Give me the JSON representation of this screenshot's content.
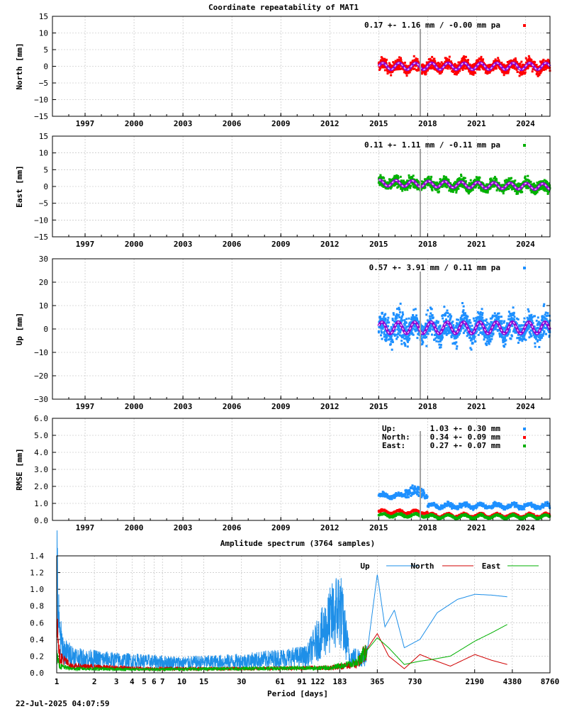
{
  "figure": {
    "title": "Coordinate repeatability of MAT1",
    "timestamp": "22-Jul-2025 04:07:59"
  },
  "colors": {
    "north": "#ff0000",
    "east": "#00b000",
    "up": "#1e90ff",
    "model": "#9400d3",
    "event_line": "#a0a0a0",
    "spec_up": "#1e8fe8",
    "spec_north": "#d00000",
    "spec_east": "#00b000"
  },
  "chart_data": [
    {
      "id": "north",
      "type": "scatter",
      "ylabel": "North [mm]",
      "ylim": [
        -15,
        15
      ],
      "yticks": [
        15,
        10,
        5,
        0,
        -5,
        -10,
        -15
      ],
      "xlim": [
        1995,
        2025.5
      ],
      "xticks": [
        1997,
        2000,
        2003,
        2006,
        2009,
        2012,
        2015,
        2018,
        2021,
        2024
      ],
      "xtick_labels": [
        "1997",
        "2000",
        "2003",
        "2006",
        "2009",
        "2012",
        "2015",
        "2018",
        "2021",
        "2024"
      ],
      "stats": "0.17 +- 1.16 mm / -0.00 mm pa",
      "data_range": [
        2015.0,
        2025.5
      ],
      "mean": 0.0,
      "scatter": 1.16,
      "seasonal_amplitude": 1.0,
      "seasonal_phase": 0.0,
      "event_year": 2017.55,
      "series_color_key": "north"
    },
    {
      "id": "east",
      "type": "scatter",
      "ylabel": "East [mm]",
      "ylim": [
        -15,
        15
      ],
      "yticks": [
        15,
        10,
        5,
        0,
        -5,
        -10,
        -15
      ],
      "xlim": [
        1995,
        2025.5
      ],
      "xticks": [
        1997,
        2000,
        2003,
        2006,
        2009,
        2012,
        2015,
        2018,
        2021,
        2024
      ],
      "xtick_labels": [
        "1997",
        "2000",
        "2003",
        "2006",
        "2009",
        "2012",
        "2015",
        "2018",
        "2021",
        "2024"
      ],
      "stats": "0.11 +- 1.11 mm / -0.11 mm pa",
      "data_range": [
        2015.0,
        2025.5
      ],
      "mean": 0.5,
      "trend_per_year": -0.11,
      "scatter": 1.11,
      "seasonal_amplitude": 0.9,
      "seasonal_phase": 1.2,
      "event_year": 2017.55,
      "series_color_key": "east"
    },
    {
      "id": "up",
      "type": "scatter",
      "ylabel": "Up [mm]",
      "ylim": [
        -30,
        30
      ],
      "yticks": [
        30,
        20,
        10,
        0,
        -10,
        -20,
        -30
      ],
      "xlim": [
        1995,
        2025.5
      ],
      "xticks": [
        1997,
        2000,
        2003,
        2006,
        2009,
        2012,
        2015,
        2018,
        2021,
        2024
      ],
      "xtick_labels": [
        "1997",
        "2000",
        "2003",
        "2006",
        "2009",
        "2012",
        "2015",
        "2018",
        "2021",
        "2024"
      ],
      "stats": "0.57 +- 3.91 mm /  0.11 mm pa",
      "data_range": [
        2015.0,
        2025.5
      ],
      "mean": 0.5,
      "scatter": 3.91,
      "seasonal_amplitude": 2.5,
      "seasonal_phase": 0.3,
      "event_year": 2017.55,
      "series_color_key": "up"
    },
    {
      "id": "rmse",
      "type": "scatter",
      "ylabel": "RMSE [mm]",
      "ylim": [
        0,
        6
      ],
      "yticks": [
        6,
        5,
        4,
        3,
        2,
        1,
        0
      ],
      "ytick_labels": [
        "6.0",
        "5.0",
        "4.0",
        "3.0",
        "2.0",
        "1.0",
        "0.0"
      ],
      "xlim": [
        1995,
        2025.5
      ],
      "xticks": [
        1997,
        2000,
        2003,
        2006,
        2009,
        2012,
        2015,
        2018,
        2021,
        2024
      ],
      "xtick_labels": [
        "1997",
        "2000",
        "2003",
        "2006",
        "2009",
        "2012",
        "2015",
        "2018",
        "2021",
        "2024"
      ],
      "event_year": 2017.55,
      "legend": [
        {
          "name": "Up:",
          "value": "1.03 +- 0.30 mm",
          "color_key": "up",
          "level_early": 1.45,
          "level_late": 0.85
        },
        {
          "name": "North:",
          "value": "0.34 +- 0.09 mm",
          "color_key": "north",
          "level_early": 0.5,
          "level_late": 0.3
        },
        {
          "name": "East:",
          "value": "0.27 +- 0.07 mm",
          "color_key": "east",
          "level_early": 0.3,
          "level_late": 0.22
        }
      ]
    },
    {
      "id": "spectrum",
      "type": "line",
      "title": "Amplitude spectrum (3764 samples)",
      "xlabel": "Period [days]",
      "x_scale": "log",
      "xlim": [
        1,
        8760
      ],
      "ylim": [
        0,
        1.4
      ],
      "yticks": [
        1.4,
        1.2,
        1.0,
        0.8,
        0.6,
        0.4,
        0.2,
        0.0
      ],
      "ytick_labels": [
        "1.4",
        "1.2",
        "1.0",
        "0.8",
        "0.6",
        "0.4",
        "0.2",
        "0.0"
      ],
      "xticks": [
        1,
        2,
        3,
        4,
        5,
        6,
        7,
        10,
        15,
        30,
        61,
        91,
        122,
        183,
        365,
        730,
        2190,
        4380,
        8760
      ],
      "xtick_labels": [
        "1",
        "2",
        "3",
        "4",
        "5",
        "6",
        "7",
        "10",
        "15",
        "30",
        "61",
        "91",
        "122",
        "183",
        "365",
        "730",
        "2190",
        "4380",
        "8760"
      ],
      "legend": [
        "Up",
        "North",
        "East"
      ],
      "series": [
        {
          "name": "Up",
          "color_key": "spec_up",
          "points": [
            [
              1,
              1.18
            ],
            [
              1.05,
              0.45
            ],
            [
              1.15,
              0.25
            ],
            [
              1.5,
              0.18
            ],
            [
              3,
              0.15
            ],
            [
              10,
              0.12
            ],
            [
              30,
              0.14
            ],
            [
              100,
              0.2
            ],
            [
              183,
              0.8
            ],
            [
              220,
              0.18
            ],
            [
              300,
              0.2
            ],
            [
              365,
              1.18
            ],
            [
              420,
              0.55
            ],
            [
              500,
              0.75
            ],
            [
              600,
              0.3
            ],
            [
              800,
              0.4
            ],
            [
              1100,
              0.72
            ],
            [
              1600,
              0.88
            ],
            [
              2200,
              0.94
            ],
            [
              3000,
              0.93
            ],
            [
              4000,
              0.91
            ]
          ]
        },
        {
          "name": "North",
          "color_key": "spec_north",
          "points": [
            [
              1,
              0.8
            ],
            [
              1.05,
              0.2
            ],
            [
              1.3,
              0.08
            ],
            [
              5,
              0.05
            ],
            [
              30,
              0.05
            ],
            [
              150,
              0.06
            ],
            [
              250,
              0.1
            ],
            [
              365,
              0.47
            ],
            [
              450,
              0.2
            ],
            [
              600,
              0.05
            ],
            [
              800,
              0.22
            ],
            [
              1000,
              0.16
            ],
            [
              1400,
              0.08
            ],
            [
              2200,
              0.22
            ],
            [
              3000,
              0.15
            ],
            [
              4000,
              0.1
            ]
          ]
        },
        {
          "name": "East",
          "color_key": "spec_east",
          "points": [
            [
              1,
              0.2
            ],
            [
              1.05,
              0.08
            ],
            [
              1.3,
              0.05
            ],
            [
              5,
              0.04
            ],
            [
              30,
              0.05
            ],
            [
              150,
              0.06
            ],
            [
              250,
              0.12
            ],
            [
              365,
              0.42
            ],
            [
              450,
              0.3
            ],
            [
              600,
              0.1
            ],
            [
              800,
              0.14
            ],
            [
              1000,
              0.16
            ],
            [
              1400,
              0.2
            ],
            [
              2200,
              0.38
            ],
            [
              3000,
              0.48
            ],
            [
              4000,
              0.58
            ]
          ]
        }
      ]
    }
  ]
}
